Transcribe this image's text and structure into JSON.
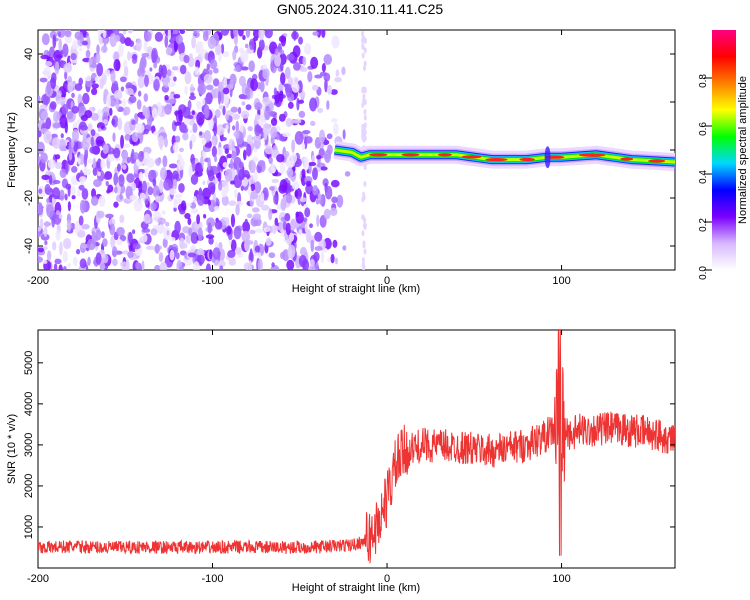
{
  "title": "GN05.2024.310.11.41.C25",
  "chart_data": [
    {
      "type": "heatmap",
      "xlabel": "Height of straight line (km)",
      "ylabel": "Frequency (Hz)",
      "xlim": [
        -200,
        165
      ],
      "ylim": [
        -50,
        50
      ],
      "xticks": [
        "-200",
        "-100",
        "0",
        "100"
      ],
      "yticks": [
        "-40",
        "-20",
        "0",
        "20",
        "40"
      ],
      "colorbar": {
        "label": "Normalized spectral amplitude",
        "range": [
          0,
          1
        ],
        "ticks": [
          "0.0",
          "0.2",
          "0.4",
          "0.6",
          "0.8"
        ],
        "colors": [
          "#ffffff",
          "#d8b8ff",
          "#7a00ff",
          "#0000ff",
          "#00d8ff",
          "#00ff00",
          "#ffff00",
          "#ff7f00",
          "#ff0000",
          "#ff0080"
        ]
      },
      "noise_region_x": [
        -200,
        -20
      ],
      "signal_track": {
        "x": [
          -30,
          -20,
          -15,
          -10,
          0,
          20,
          40,
          60,
          80,
          92,
          100,
          120,
          140,
          165
        ],
        "y": [
          0,
          -1,
          -3,
          -2,
          -2,
          -2,
          -2,
          -4,
          -4,
          -3,
          -3,
          -2,
          -4,
          -5
        ],
        "peak_amplitude": 0.95
      }
    },
    {
      "type": "line",
      "xlabel": "Height of straight line (km)",
      "ylabel": "SNR (10 * v/v)",
      "xlim": [
        -200,
        165
      ],
      "ylim": [
        0,
        5800
      ],
      "xticks": [
        "-200",
        "-100",
        "0",
        "100"
      ],
      "yticks": [
        "1000",
        "2000",
        "3000",
        "4000",
        "5000"
      ],
      "series": [
        {
          "color": "#ee3333",
          "x": [
            -200,
            -180,
            -160,
            -140,
            -120,
            -100,
            -80,
            -60,
            -40,
            -20,
            -10,
            -5,
            0,
            5,
            10,
            20,
            40,
            60,
            80,
            90,
            95,
            100,
            105,
            110,
            130,
            150,
            165
          ],
          "y": [
            500,
            520,
            500,
            510,
            500,
            500,
            510,
            500,
            510,
            560,
            700,
            1100,
            1700,
            2500,
            2800,
            3000,
            2950,
            2850,
            3000,
            3200,
            3350,
            3400,
            3250,
            3350,
            3400,
            3300,
            3150
          ]
        }
      ]
    }
  ]
}
